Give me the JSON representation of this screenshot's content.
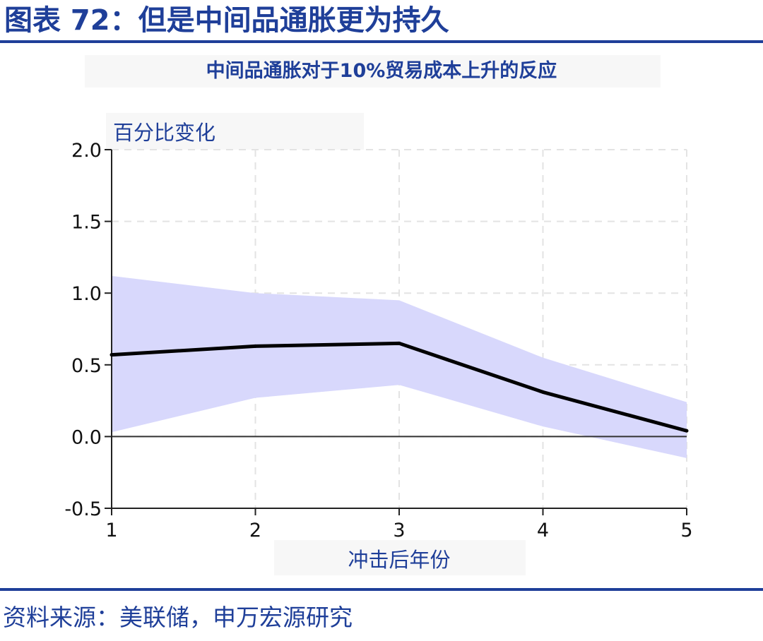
{
  "figure_title": "图表 72：但是中间品通胀更为持久",
  "source": "资料来源：美联储，申万宏源研究",
  "colors": {
    "brand_blue": "#1f3f99",
    "band_fill": "#d8d8fc",
    "line": "#000000",
    "grid": "#e3e3e3"
  },
  "chart_data": {
    "type": "line",
    "title": "中间品通胀对于10%贸易成本上升的反应",
    "ylabel": "百分比变化",
    "xlabel": "冲击后年份",
    "x": [
      1,
      2,
      3,
      4,
      5
    ],
    "x_ticks": [
      "1",
      "2",
      "3",
      "4",
      "5"
    ],
    "ylim": [
      -0.5,
      2.0
    ],
    "y_ticks": [
      "-0.5",
      "0.0",
      "0.5",
      "1.0",
      "1.5",
      "2.0"
    ],
    "grid": true,
    "series": [
      {
        "values": [
          0.57,
          0.63,
          0.65,
          0.31,
          0.04
        ]
      }
    ],
    "band": {
      "upper": [
        1.12,
        1.0,
        0.95,
        0.55,
        0.24
      ],
      "lower": [
        0.03,
        0.27,
        0.36,
        0.07,
        -0.15
      ]
    },
    "reference_line_y": 0.0
  }
}
